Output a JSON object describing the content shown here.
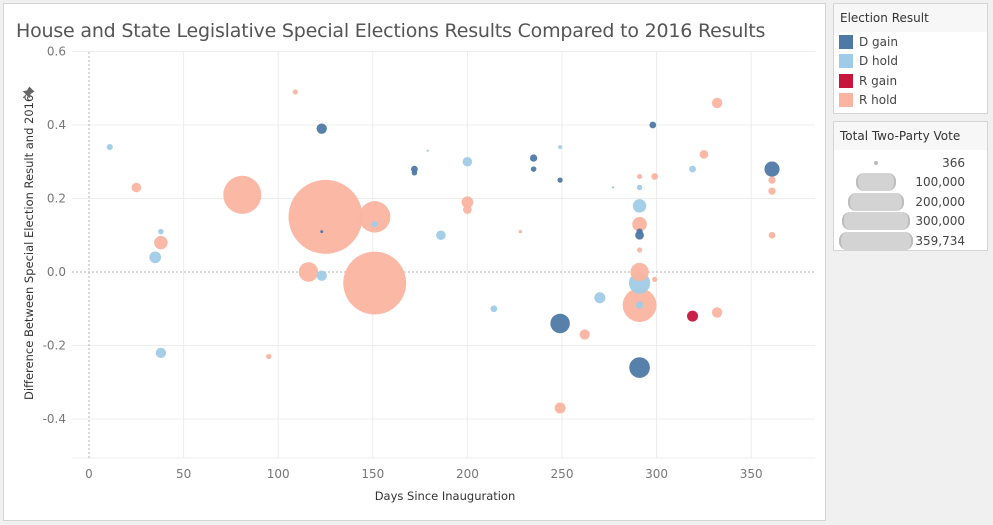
{
  "title": "House and State Legislative Special Elections Results Compared to 2016 Results",
  "legend_color": {
    "title": "Election Result",
    "items": [
      {
        "label": "D gain",
        "color": "#4e79a7"
      },
      {
        "label": "D hold",
        "color": "#a0cbe8"
      },
      {
        "label": "R gain",
        "color": "#c7153e"
      },
      {
        "label": "R hold",
        "color": "#fbb4a0"
      }
    ]
  },
  "legend_size": {
    "title": "Total Two-Party Vote",
    "items": [
      {
        "label": "366",
        "value": 366
      },
      {
        "label": "100,000",
        "value": 100000
      },
      {
        "label": "200,000",
        "value": 200000
      },
      {
        "label": "300,000",
        "value": 300000
      },
      {
        "label": "359,734",
        "value": 359734
      }
    ]
  },
  "chart_data": {
    "type": "scatter",
    "title": "House and State Legislative Special Elections Results Compared to 2016 Results",
    "xlabel": "Days Since Inauguration",
    "ylabel": "Difference Between Special Election Result and 2016",
    "xlim": [
      -8,
      384
    ],
    "ylim": [
      -0.5,
      0.62
    ],
    "xticks": [
      0,
      50,
      100,
      150,
      200,
      250,
      300,
      350
    ],
    "xtick_labels": [
      "0",
      "50",
      "100",
      "150",
      "200",
      "250",
      "300",
      "350"
    ],
    "yticks": [
      -0.4,
      -0.2,
      0.0,
      0.2,
      0.4,
      0.6
    ],
    "ytick_labels": [
      "-0.4",
      "-0.2",
      "0.0",
      "0.2",
      "0.4",
      "0.6"
    ],
    "reference_lines": {
      "x": 0,
      "y": 0
    },
    "grid": true,
    "legend": "right",
    "color_field": "Election Result",
    "size_field": "Total Two-Party Vote",
    "points": [
      {
        "x": 11,
        "y": 0.34,
        "result": "D hold",
        "vote": 2500
      },
      {
        "x": 25,
        "y": 0.23,
        "result": "R hold",
        "vote": 6000
      },
      {
        "x": 35,
        "y": 0.04,
        "result": "D hold",
        "vote": 9000
      },
      {
        "x": 38,
        "y": 0.11,
        "result": "D hold",
        "vote": 2000
      },
      {
        "x": 38,
        "y": 0.08,
        "result": "R hold",
        "vote": 12000
      },
      {
        "x": 38,
        "y": -0.22,
        "result": "D hold",
        "vote": 7000
      },
      {
        "x": 81,
        "y": 0.21,
        "result": "R hold",
        "vote": 95000
      },
      {
        "x": 95,
        "y": -0.23,
        "result": "R hold",
        "vote": 1800
      },
      {
        "x": 109,
        "y": 0.49,
        "result": "R hold",
        "vote": 1800
      },
      {
        "x": 116,
        "y": 0.0,
        "result": "R hold",
        "vote": 25000
      },
      {
        "x": 123,
        "y": 0.39,
        "result": "D gain",
        "vote": 7000
      },
      {
        "x": 123,
        "y": -0.01,
        "result": "D hold",
        "vote": 7000
      },
      {
        "x": 123,
        "y": 0.11,
        "result": "D gain",
        "vote": 600
      },
      {
        "x": 125,
        "y": 0.15,
        "result": "R hold",
        "vote": 359734
      },
      {
        "x": 151,
        "y": 0.15,
        "result": "R hold",
        "vote": 65000
      },
      {
        "x": 151,
        "y": 0.13,
        "result": "D hold",
        "vote": 2500
      },
      {
        "x": 151,
        "y": -0.03,
        "result": "R hold",
        "vote": 260000
      },
      {
        "x": 172,
        "y": 0.28,
        "result": "D gain",
        "vote": 3000
      },
      {
        "x": 172,
        "y": 0.27,
        "result": "D gain",
        "vote": 2000
      },
      {
        "x": 179,
        "y": 0.33,
        "result": "D hold",
        "vote": 366
      },
      {
        "x": 186,
        "y": 0.1,
        "result": "D hold",
        "vote": 6000
      },
      {
        "x": 200,
        "y": 0.3,
        "result": "D hold",
        "vote": 6000
      },
      {
        "x": 200,
        "y": 0.19,
        "result": "R hold",
        "vote": 9000
      },
      {
        "x": 200,
        "y": 0.17,
        "result": "R hold",
        "vote": 5000
      },
      {
        "x": 214,
        "y": -0.1,
        "result": "D hold",
        "vote": 3000
      },
      {
        "x": 228,
        "y": 0.11,
        "result": "R hold",
        "vote": 800
      },
      {
        "x": 235,
        "y": 0.31,
        "result": "D gain",
        "vote": 3500
      },
      {
        "x": 235,
        "y": 0.28,
        "result": "D gain",
        "vote": 2000
      },
      {
        "x": 249,
        "y": 0.34,
        "result": "D hold",
        "vote": 1000
      },
      {
        "x": 249,
        "y": 0.25,
        "result": "D gain",
        "vote": 1800
      },
      {
        "x": 249,
        "y": -0.14,
        "result": "D gain",
        "vote": 25000
      },
      {
        "x": 249,
        "y": -0.37,
        "result": "R hold",
        "vote": 8000
      },
      {
        "x": 262,
        "y": -0.17,
        "result": "R hold",
        "vote": 7000
      },
      {
        "x": 270,
        "y": -0.07,
        "result": "D hold",
        "vote": 8000
      },
      {
        "x": 277,
        "y": 0.23,
        "result": "D hold",
        "vote": 366
      },
      {
        "x": 291,
        "y": 0.26,
        "result": "R hold",
        "vote": 1800
      },
      {
        "x": 291,
        "y": 0.23,
        "result": "D hold",
        "vote": 2000
      },
      {
        "x": 291,
        "y": 0.18,
        "result": "D hold",
        "vote": 12000
      },
      {
        "x": 291,
        "y": 0.13,
        "result": "R hold",
        "vote": 14000
      },
      {
        "x": 291,
        "y": 0.11,
        "result": "D gain",
        "vote": 2500
      },
      {
        "x": 291,
        "y": 0.1,
        "result": "D gain",
        "vote": 5000
      },
      {
        "x": 291,
        "y": 0.06,
        "result": "R hold",
        "vote": 1800
      },
      {
        "x": 291,
        "y": 0.0,
        "result": "R hold",
        "vote": 22000
      },
      {
        "x": 299,
        "y": -0.02,
        "result": "R hold",
        "vote": 1800
      },
      {
        "x": 291,
        "y": -0.03,
        "result": "D hold",
        "vote": 30000
      },
      {
        "x": 291,
        "y": -0.09,
        "result": "R hold",
        "vote": 75000
      },
      {
        "x": 291,
        "y": -0.09,
        "result": "D hold",
        "vote": 3500
      },
      {
        "x": 291,
        "y": -0.26,
        "result": "D gain",
        "vote": 28000
      },
      {
        "x": 298,
        "y": 0.4,
        "result": "D gain",
        "vote": 3000
      },
      {
        "x": 299,
        "y": 0.26,
        "result": "R hold",
        "vote": 3000
      },
      {
        "x": 319,
        "y": -0.12,
        "result": "R gain",
        "vote": 8000
      },
      {
        "x": 319,
        "y": 0.28,
        "result": "D hold",
        "vote": 3000
      },
      {
        "x": 325,
        "y": 0.32,
        "result": "R hold",
        "vote": 5000
      },
      {
        "x": 332,
        "y": 0.46,
        "result": "R hold",
        "vote": 7000
      },
      {
        "x": 332,
        "y": -0.11,
        "result": "R hold",
        "vote": 7000
      },
      {
        "x": 361,
        "y": 0.28,
        "result": "D gain",
        "vote": 15000
      },
      {
        "x": 361,
        "y": 0.25,
        "result": "R hold",
        "vote": 3500
      },
      {
        "x": 361,
        "y": 0.22,
        "result": "R hold",
        "vote": 3500
      },
      {
        "x": 361,
        "y": 0.1,
        "result": "R hold",
        "vote": 3000
      }
    ]
  }
}
